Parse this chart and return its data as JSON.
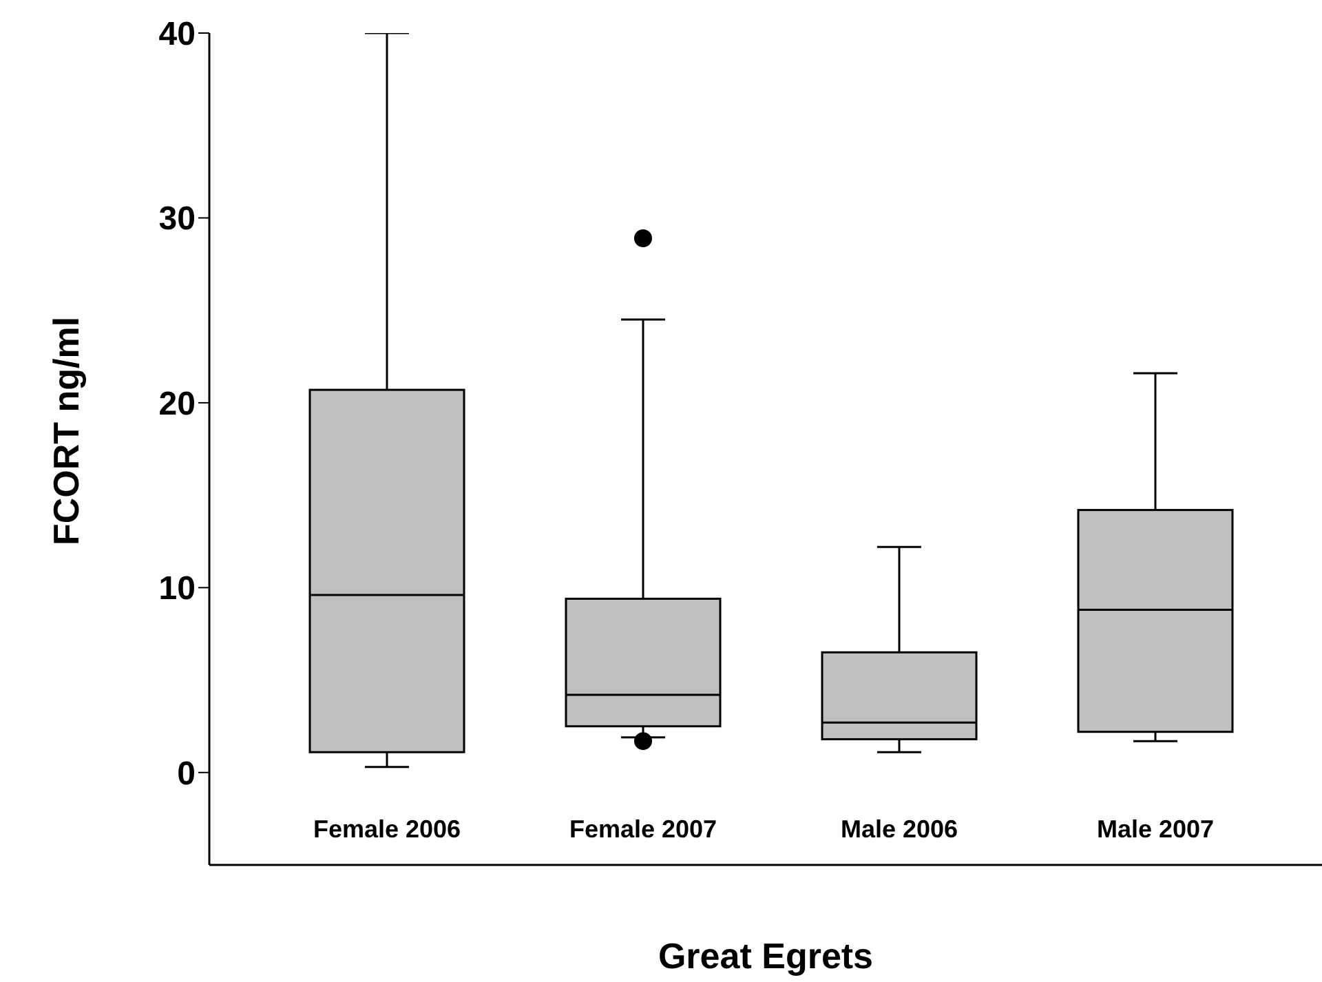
{
  "chart_data": {
    "type": "box",
    "xlabel": "Great Egrets",
    "ylabel": "FCORT ng/ml",
    "categories": [
      "Female 2006",
      "Female 2007",
      "Male 2006",
      "Male 2007"
    ],
    "color": "#c0c0c0",
    "ylim": [
      -5,
      40
    ],
    "yticks": [
      0,
      10,
      20,
      30,
      40
    ],
    "boxes": [
      {
        "low": 0.3,
        "q1": 1.1,
        "median": 9.6,
        "q3": 20.7,
        "high": 40
      },
      {
        "low": 1.9,
        "q1": 2.5,
        "median": 4.2,
        "q3": 9.4,
        "high": 24.5,
        "outliers": [
          28.9,
          1.7
        ]
      },
      {
        "low": 1.1,
        "q1": 1.8,
        "median": 2.7,
        "q3": 6.5,
        "high": 12.2
      },
      {
        "low": 1.7,
        "q1": 2.2,
        "median": 8.8,
        "q3": 14.2,
        "high": 21.6
      }
    ]
  }
}
